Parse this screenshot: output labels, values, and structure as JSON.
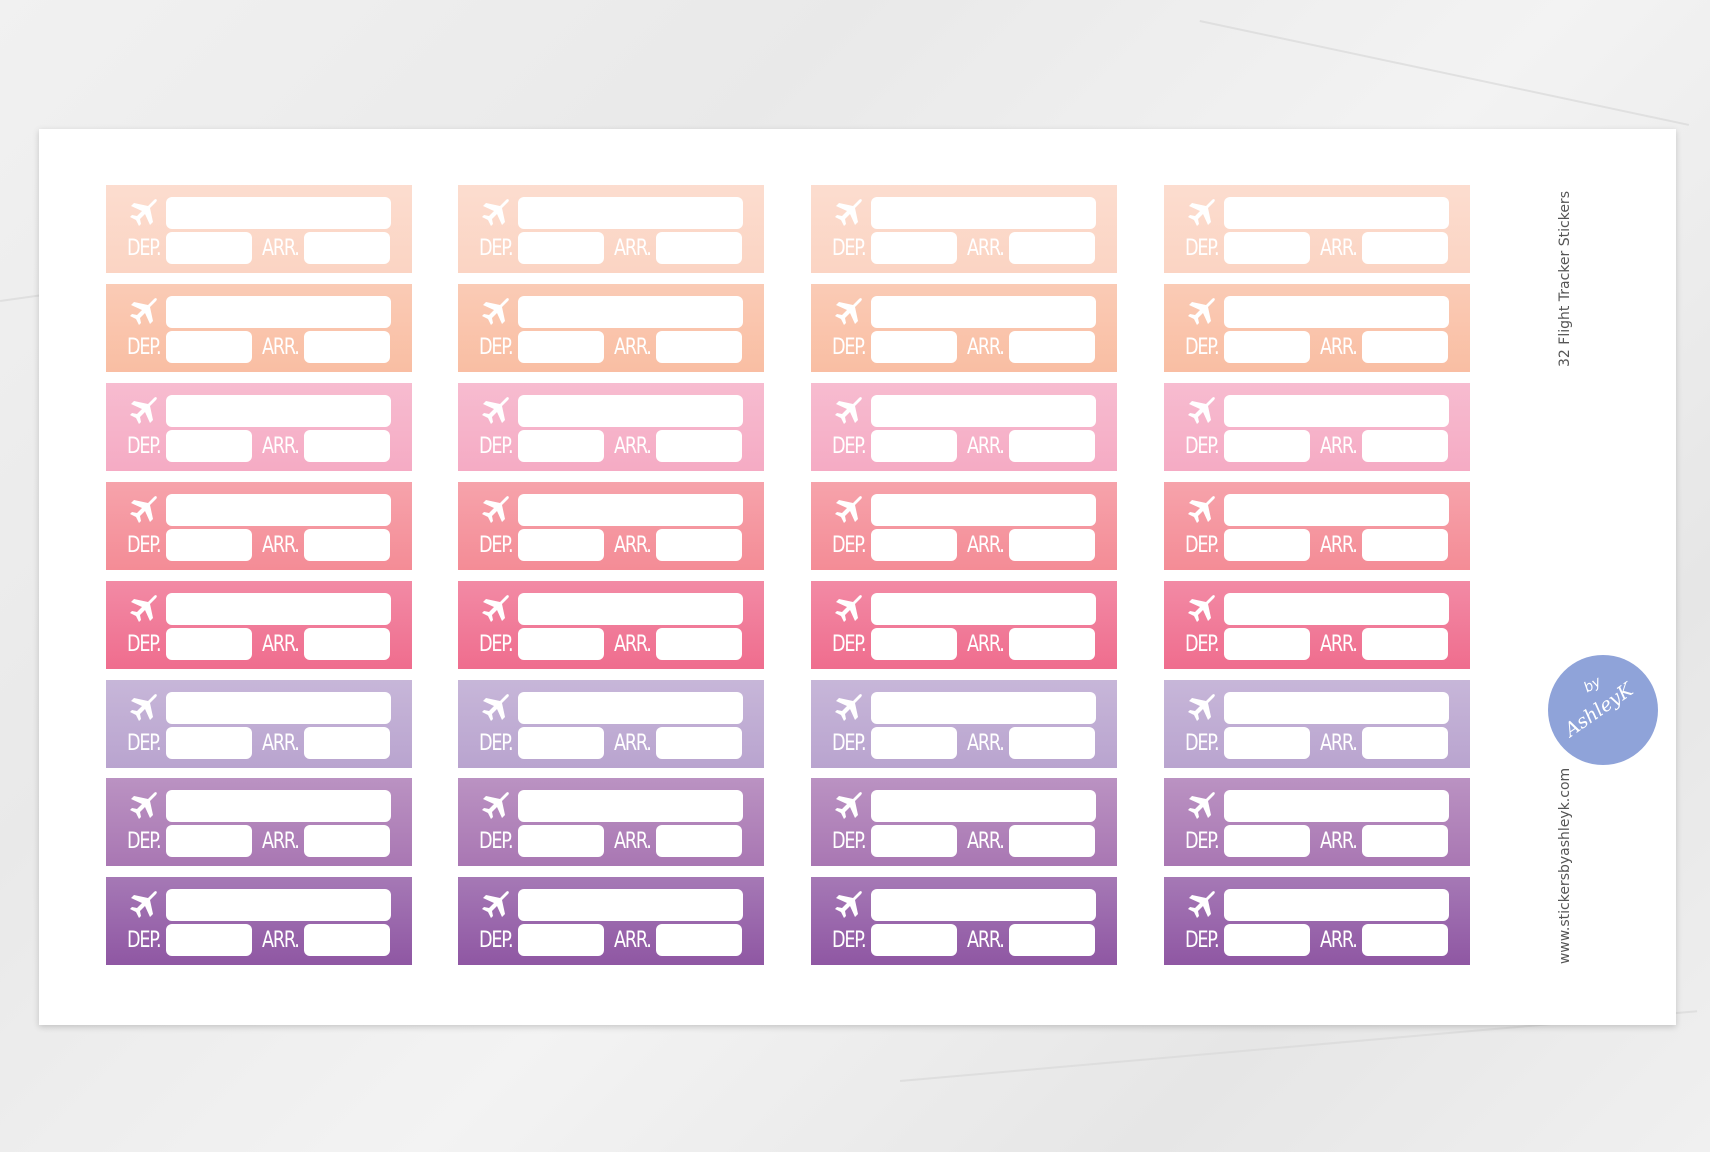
{
  "sheet": {
    "side_title": "32 Flight Tracker Stickers",
    "website": "www.stickersbyashleyk.com",
    "logo": {
      "by": "by",
      "name": "AshleyK"
    },
    "rows": [
      {
        "color": "#fbd4c3",
        "stickers": [
          {
            "dep": "DEP.",
            "arr": "ARR."
          },
          {
            "dep": "DEP.",
            "arr": "ARR."
          },
          {
            "dep": "DEP.",
            "arr": "ARR."
          },
          {
            "dep": "DEP.",
            "arr": "ARR."
          }
        ]
      },
      {
        "color": "#f9bea3",
        "stickers": [
          {
            "dep": "DEP.",
            "arr": "ARR."
          },
          {
            "dep": "DEP.",
            "arr": "ARR."
          },
          {
            "dep": "DEP.",
            "arr": "ARR."
          },
          {
            "dep": "DEP.",
            "arr": "ARR."
          }
        ]
      },
      {
        "color": "#f5abc4",
        "stickers": [
          {
            "dep": "DEP.",
            "arr": "ARR."
          },
          {
            "dep": "DEP.",
            "arr": "ARR."
          },
          {
            "dep": "DEP.",
            "arr": "ARR."
          },
          {
            "dep": "DEP.",
            "arr": "ARR."
          }
        ]
      },
      {
        "color": "#f48c96",
        "stickers": [
          {
            "dep": "DEP.",
            "arr": "ARR."
          },
          {
            "dep": "DEP.",
            "arr": "ARR."
          },
          {
            "dep": "DEP.",
            "arr": "ARR."
          },
          {
            "dep": "DEP.",
            "arr": "ARR."
          }
        ]
      },
      {
        "color": "#ef6d8e",
        "stickers": [
          {
            "dep": "DEP.",
            "arr": "ARR."
          },
          {
            "dep": "DEP.",
            "arr": "ARR."
          },
          {
            "dep": "DEP.",
            "arr": "ARR."
          },
          {
            "dep": "DEP.",
            "arr": "ARR."
          }
        ]
      },
      {
        "color": "#b9a4cf",
        "stickers": [
          {
            "dep": "DEP.",
            "arr": "ARR."
          },
          {
            "dep": "DEP.",
            "arr": "ARR."
          },
          {
            "dep": "DEP.",
            "arr": "ARR."
          },
          {
            "dep": "DEP.",
            "arr": "ARR."
          }
        ]
      },
      {
        "color": "#a977b3",
        "stickers": [
          {
            "dep": "DEP.",
            "arr": "ARR."
          },
          {
            "dep": "DEP.",
            "arr": "ARR."
          },
          {
            "dep": "DEP.",
            "arr": "ARR."
          },
          {
            "dep": "DEP.",
            "arr": "ARR."
          }
        ]
      },
      {
        "color": "#8f57a3",
        "stickers": [
          {
            "dep": "DEP.",
            "arr": "ARR."
          },
          {
            "dep": "DEP.",
            "arr": "ARR."
          },
          {
            "dep": "DEP.",
            "arr": "ARR."
          },
          {
            "dep": "DEP.",
            "arr": "ARR."
          }
        ]
      }
    ]
  }
}
